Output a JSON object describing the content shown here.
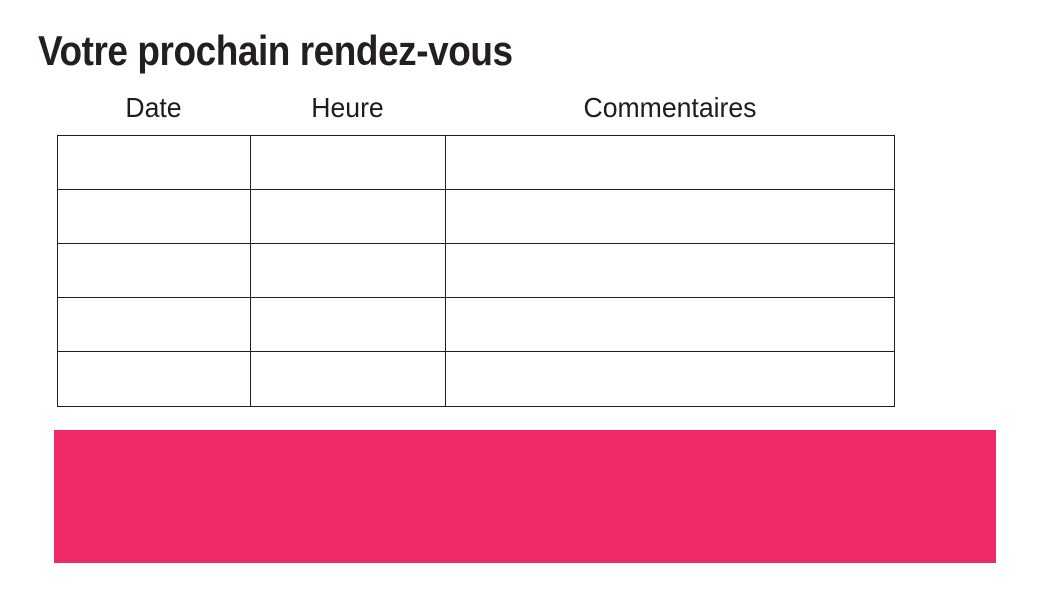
{
  "page": {
    "title": "Votre prochain rendez-vous"
  },
  "table": {
    "columns": [
      {
        "label": "Date"
      },
      {
        "label": "Heure"
      },
      {
        "label": "Commentaires"
      }
    ],
    "rows": [
      [
        "",
        "",
        ""
      ],
      [
        "",
        "",
        ""
      ],
      [
        "",
        "",
        ""
      ],
      [
        "",
        "",
        ""
      ],
      [
        "",
        "",
        ""
      ]
    ]
  },
  "colors": {
    "accent_pink": "#EE2B68",
    "table_border": "#1F1F1F",
    "text": "#231F20"
  }
}
